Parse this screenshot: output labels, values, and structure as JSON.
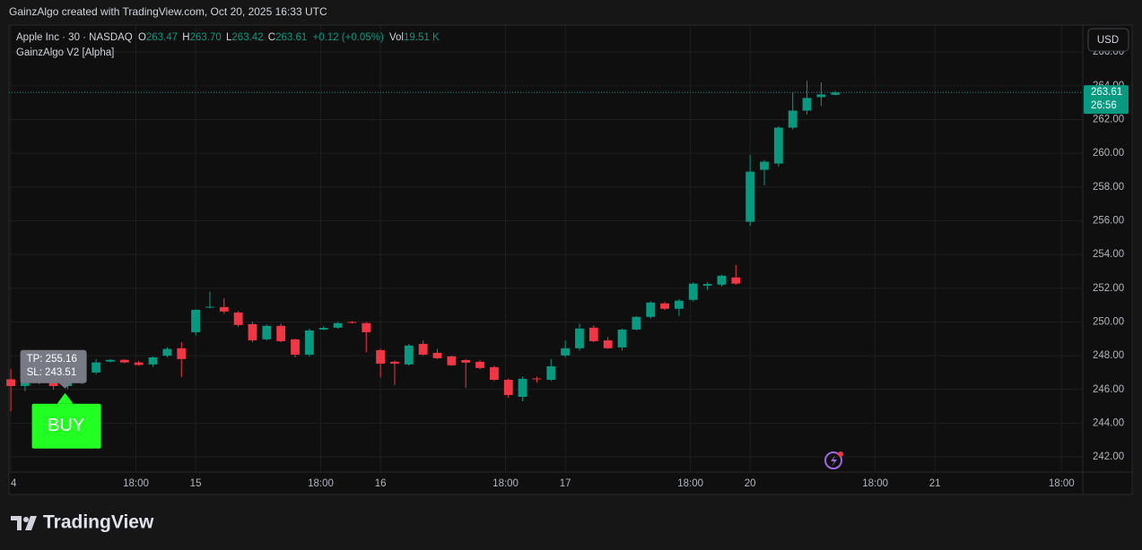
{
  "header": {
    "caption": "GainzAlgo created with TradingView.com, Oct 20, 2025 16:33 UTC"
  },
  "legend": {
    "symbol": "Apple Inc · 30 · NASDAQ",
    "o_key": "O",
    "o": "263.47",
    "h_key": "H",
    "h": "263.70",
    "l_key": "L",
    "l": "263.42",
    "c_key": "C",
    "c": "263.61",
    "change": "+0.12 (+0.05%)",
    "vol_key": "Vol",
    "vol": "19.51 K",
    "indicator": "GainzAlgo V2 [Alpha]"
  },
  "currency_button": "USD",
  "countdown": "26:56",
  "signal": {
    "tp": "TP: 255.16",
    "sl": "SL: 243.51",
    "label": "BUY"
  },
  "footer": {
    "brand": "TradingView"
  },
  "chart_data": {
    "type": "candlestick",
    "up_color": "#089981",
    "down_color": "#f23645",
    "x": [
      0,
      1,
      2,
      3,
      4,
      5,
      6,
      7,
      8,
      9,
      10,
      11,
      12,
      13,
      14,
      15,
      16,
      17,
      18,
      19,
      20,
      21,
      22,
      23,
      24,
      25,
      26,
      27,
      28,
      29,
      30,
      31,
      32,
      33,
      34,
      35,
      36,
      37,
      38,
      39,
      40,
      41,
      42,
      43,
      44,
      45,
      46,
      47,
      48,
      49,
      50,
      51,
      52,
      53,
      54,
      55,
      56,
      57,
      58
    ],
    "open": [
      246.6,
      246.2,
      247.0,
      246.6,
      246.2,
      246.5,
      247.0,
      247.65,
      247.75,
      247.6,
      247.48,
      248.0,
      248.44,
      249.39,
      250.85,
      250.88,
      250.56,
      249.87,
      248.97,
      249.77,
      248.97,
      248.06,
      249.55,
      249.66,
      250.0,
      249.93,
      248.33,
      247.64,
      247.48,
      248.7,
      248.17,
      247.96,
      247.74,
      247.64,
      247.32,
      246.57,
      245.56,
      246.65,
      246.57,
      248.01,
      248.44,
      249.66,
      248.91,
      248.49,
      249.55,
      250.3,
      251.1,
      250.78,
      251.31,
      252.15,
      252.21,
      252.64,
      255.94,
      259.02,
      259.39,
      261.52,
      262.53,
      263.33,
      263.47
    ],
    "high": [
      247.2,
      247.3,
      247.3,
      246.8,
      246.7,
      247.2,
      247.8,
      247.8,
      247.8,
      247.7,
      247.95,
      248.5,
      248.8,
      250.75,
      251.79,
      251.4,
      250.65,
      250.0,
      249.85,
      249.9,
      249.0,
      249.6,
      249.75,
      250.0,
      250.05,
      250.0,
      248.4,
      247.7,
      248.7,
      248.9,
      248.4,
      248.0,
      247.8,
      247.75,
      247.4,
      246.65,
      246.75,
      246.75,
      247.8,
      248.9,
      249.9,
      249.8,
      249.1,
      249.6,
      250.35,
      251.25,
      251.2,
      251.35,
      252.35,
      252.35,
      252.8,
      253.38,
      259.9,
      259.6,
      261.6,
      263.6,
      264.3,
      264.2,
      263.7
    ],
    "low": [
      244.7,
      245.9,
      246.3,
      246.0,
      246.0,
      246.3,
      246.9,
      247.6,
      247.55,
      247.4,
      247.35,
      247.9,
      246.73,
      249.2,
      250.8,
      250.5,
      249.7,
      248.8,
      248.9,
      248.8,
      247.9,
      247.95,
      249.5,
      249.6,
      249.9,
      248.2,
      246.7,
      246.26,
      247.4,
      248.0,
      247.8,
      247.4,
      246.1,
      247.2,
      246.5,
      245.5,
      245.3,
      246.4,
      246.5,
      247.9,
      248.3,
      248.8,
      248.4,
      248.3,
      249.5,
      250.2,
      250.7,
      250.35,
      251.2,
      251.9,
      252.1,
      252.2,
      255.7,
      258.1,
      259.2,
      261.4,
      262.3,
      262.8,
      263.42
    ],
    "close": [
      246.2,
      247.0,
      246.6,
      246.2,
      246.5,
      247.0,
      247.6,
      247.75,
      247.6,
      247.45,
      247.9,
      248.4,
      247.8,
      250.72,
      250.9,
      250.62,
      249.82,
      248.91,
      249.77,
      248.86,
      248.06,
      249.5,
      249.65,
      249.93,
      249.95,
      249.39,
      247.53,
      247.53,
      248.6,
      248.06,
      247.85,
      247.43,
      247.59,
      247.27,
      246.57,
      245.67,
      246.63,
      246.6,
      247.37,
      248.44,
      249.61,
      248.86,
      248.44,
      249.55,
      250.3,
      251.15,
      250.78,
      251.26,
      252.27,
      252.25,
      252.74,
      252.27,
      258.91,
      259.5,
      261.52,
      262.53,
      263.28,
      263.49,
      263.61
    ],
    "signal_index": 3,
    "xlim": [
      -0.13,
      75.4
    ],
    "xticks": [
      {
        "value": 0,
        "label": "4"
      },
      {
        "value": 8.8,
        "label": "18:00"
      },
      {
        "value": 13,
        "label": "15"
      },
      {
        "value": 21.8,
        "label": "18:00"
      },
      {
        "value": 26,
        "label": "16"
      },
      {
        "value": 34.8,
        "label": "18:00"
      },
      {
        "value": 39,
        "label": "17"
      },
      {
        "value": 47.8,
        "label": "18:00"
      },
      {
        "value": 52,
        "label": "20"
      },
      {
        "value": 60.8,
        "label": "18:00"
      },
      {
        "value": 65,
        "label": "21"
      },
      {
        "value": 73.9,
        "label": "18:00"
      }
    ],
    "ylim": [
      241.1,
      267.6
    ],
    "yticks": [
      {
        "value": 242,
        "label": "242.00"
      },
      {
        "value": 244,
        "label": "244.00"
      },
      {
        "value": 246,
        "label": "246.00"
      },
      {
        "value": 248,
        "label": "248.00"
      },
      {
        "value": 250,
        "label": "250.00"
      },
      {
        "value": 252,
        "label": "252.00"
      },
      {
        "value": 254,
        "label": "254.00"
      },
      {
        "value": 256,
        "label": "256.00"
      },
      {
        "value": 258,
        "label": "258.00"
      },
      {
        "value": 260,
        "label": "260.00"
      },
      {
        "value": 262,
        "label": "262.00"
      },
      {
        "value": 264,
        "label": "264.00"
      },
      {
        "value": 266,
        "label": "266.00"
      }
    ],
    "grid": true
  }
}
